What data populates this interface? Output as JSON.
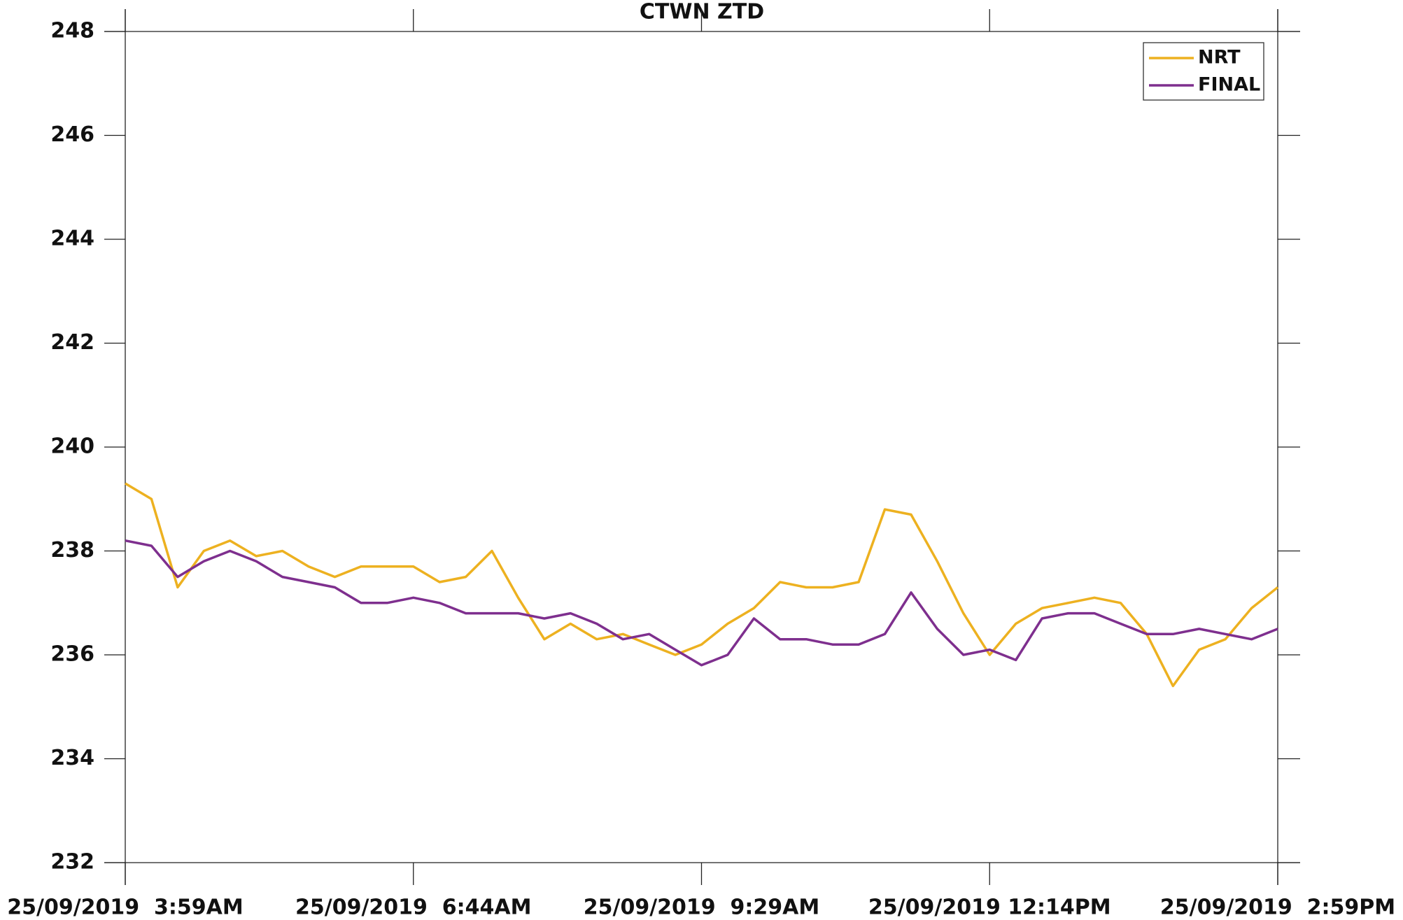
{
  "chart_data": {
    "type": "line",
    "title": "CTWN ZTD",
    "x": [
      "2019-09-25 03:59",
      "2019-09-25 04:14",
      "2019-09-25 04:29",
      "2019-09-25 04:44",
      "2019-09-25 04:59",
      "2019-09-25 05:14",
      "2019-09-25 05:29",
      "2019-09-25 05:44",
      "2019-09-25 05:59",
      "2019-09-25 06:14",
      "2019-09-25 06:29",
      "2019-09-25 06:44",
      "2019-09-25 06:59",
      "2019-09-25 07:14",
      "2019-09-25 07:29",
      "2019-09-25 07:44",
      "2019-09-25 07:59",
      "2019-09-25 08:14",
      "2019-09-25 08:29",
      "2019-09-25 08:44",
      "2019-09-25 08:59",
      "2019-09-25 09:14",
      "2019-09-25 09:29",
      "2019-09-25 09:44",
      "2019-09-25 09:59",
      "2019-09-25 10:14",
      "2019-09-25 10:29",
      "2019-09-25 10:44",
      "2019-09-25 10:59",
      "2019-09-25 11:14",
      "2019-09-25 11:29",
      "2019-09-25 11:44",
      "2019-09-25 11:59",
      "2019-09-25 12:14",
      "2019-09-25 12:29",
      "2019-09-25 12:44",
      "2019-09-25 12:59",
      "2019-09-25 13:14",
      "2019-09-25 13:29",
      "2019-09-25 13:44",
      "2019-09-25 13:59",
      "2019-09-25 14:14",
      "2019-09-25 14:29",
      "2019-09-25 14:44",
      "2019-09-25 14:59"
    ],
    "series": [
      {
        "name": "NRT",
        "color": "#edb120",
        "values": [
          239.3,
          239.0,
          237.3,
          238.0,
          238.2,
          237.9,
          238.0,
          237.7,
          237.5,
          237.7,
          237.7,
          237.7,
          237.4,
          237.5,
          238.0,
          237.1,
          236.3,
          236.6,
          236.3,
          236.4,
          236.2,
          236.0,
          236.2,
          236.6,
          236.9,
          237.4,
          237.3,
          237.3,
          237.4,
          238.8,
          238.7,
          237.8,
          236.8,
          236.0,
          236.6,
          236.9,
          237.0,
          237.1,
          237.0,
          236.4,
          235.4,
          236.1,
          236.3,
          236.9,
          237.3
        ]
      },
      {
        "name": "FINAL",
        "color": "#7e2f8e",
        "values": [
          238.2,
          238.1,
          237.5,
          237.8,
          238.0,
          237.8,
          237.5,
          237.4,
          237.3,
          237.0,
          237.0,
          237.1,
          237.0,
          236.8,
          236.8,
          236.8,
          236.7,
          236.8,
          236.6,
          236.3,
          236.4,
          236.1,
          235.8,
          236.0,
          236.7,
          236.3,
          236.3,
          236.2,
          236.2,
          236.4,
          237.2,
          236.5,
          236.0,
          236.1,
          235.9,
          236.7,
          236.8,
          236.8,
          236.6,
          236.4,
          236.4,
          236.5,
          236.4,
          236.3,
          236.5
        ]
      }
    ],
    "xlim": [
      "2019-09-25 03:59",
      "2019-09-25 14:59"
    ],
    "xticks": [
      {
        "value": "2019-09-25 03:59",
        "label": "25/09/2019  3:59AM"
      },
      {
        "value": "2019-09-25 06:44",
        "label": "25/09/2019  6:44AM"
      },
      {
        "value": "2019-09-25 09:29",
        "label": "25/09/2019  9:29AM"
      },
      {
        "value": "2019-09-25 12:14",
        "label": "25/09/2019 12:14PM"
      },
      {
        "value": "2019-09-25 14:59",
        "label": "25/09/2019  2:59PM"
      }
    ],
    "ylim": [
      232,
      248
    ],
    "yticks": [
      232,
      234,
      236,
      238,
      240,
      242,
      244,
      246,
      248
    ],
    "grid": false,
    "legend": "upper right"
  }
}
